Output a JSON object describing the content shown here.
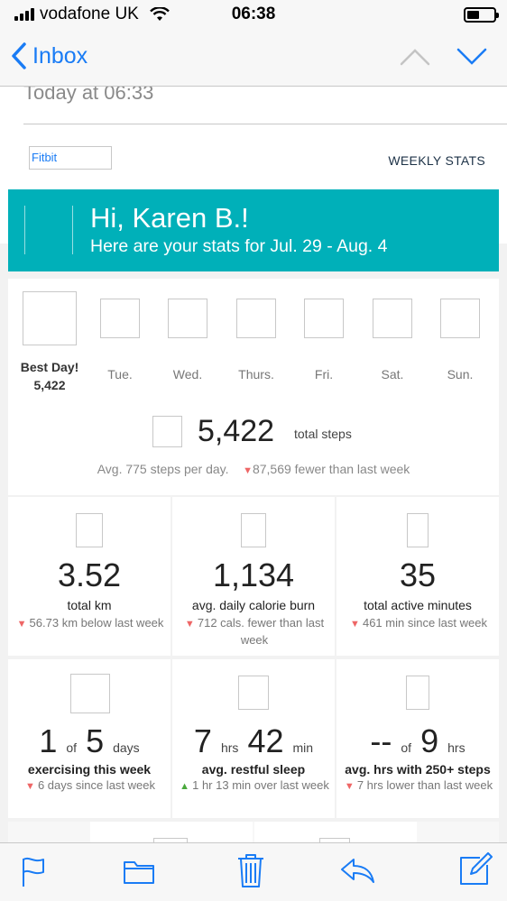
{
  "status": {
    "carrier": "vodafone UK",
    "time": "06:38"
  },
  "nav": {
    "back_label": "Inbox"
  },
  "mail": {
    "date": "Today at 06:33",
    "sender_logo": "Fitbit",
    "header_right": "WEEKLY STATS"
  },
  "banner": {
    "greeting": "Hi, Karen B.!",
    "subtitle": "Here are your stats for Jul. 29 - Aug. 4"
  },
  "days": {
    "best_label": "Best Day!",
    "best_value": "5,422",
    "labels": [
      "Tue.",
      "Wed.",
      "Thurs.",
      "Fri.",
      "Sat.",
      "Sun."
    ]
  },
  "steps": {
    "value": "5,422",
    "label": "total steps",
    "avg": "Avg. 775 steps per day.",
    "delta": "87,569 fewer than last week"
  },
  "stats": [
    {
      "value": "3.52",
      "label": "total km",
      "delta": "56.73 km below last week",
      "trend": "down"
    },
    {
      "value": "1,134",
      "label": "avg. daily calorie burn",
      "delta": "712 cals. fewer than last week",
      "trend": "down"
    },
    {
      "value": "35",
      "label": "total active minutes",
      "delta": "461 min since last week",
      "trend": "down"
    }
  ],
  "stats2": [
    {
      "v1": "1",
      "u1": "of",
      "v2": "5",
      "u2": "days",
      "label": "exercising this week",
      "delta": "6 days since last week",
      "trend": "down"
    },
    {
      "v1": "7",
      "u1": "hrs",
      "v2": "42",
      "u2": "min",
      "label": "avg. restful sleep",
      "delta": "1 hr 13 min over last week",
      "trend": "up"
    },
    {
      "v1": "--",
      "u1": "of",
      "v2": "9",
      "u2": "hrs",
      "label": "avg. hrs with 250+ steps",
      "delta": "7 hrs lower than last week",
      "trend": "down"
    }
  ],
  "colors": {
    "accent": "#1a7cf5",
    "banner": "#00b0b9",
    "down": "#ee6666",
    "up": "#4aa93c"
  },
  "toolbar": {
    "icons": [
      "flag-icon",
      "folder-icon",
      "trash-icon",
      "reply-icon",
      "compose-icon"
    ]
  }
}
